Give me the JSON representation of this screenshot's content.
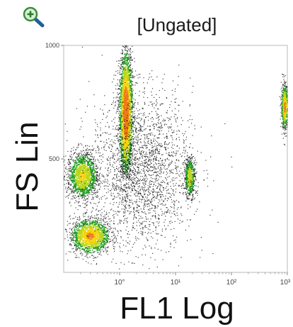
{
  "toolbar": {
    "zoom_icon": "magnifier-plus-icon",
    "zoom_color": "#2e7bc4"
  },
  "chart_data": {
    "type": "scatter",
    "title": "[Ungated]",
    "xlabel": "FL1 Log",
    "ylabel": "FS Lin",
    "x_scale": "log",
    "xlim": [
      0.1,
      1000
    ],
    "ylim": [
      0,
      1000
    ],
    "x_ticks": [
      {
        "value": 1,
        "label": "10°"
      },
      {
        "value": 10,
        "label": "10¹"
      },
      {
        "value": 100,
        "label": "10²"
      },
      {
        "value": 1000,
        "label": "10³"
      }
    ],
    "y_ticks": [
      {
        "value": 500,
        "label": "500"
      },
      {
        "value": 1000,
        "label": "1000"
      }
    ],
    "color_scale": [
      "#000000",
      "#1f9a1f",
      "#b6d61a",
      "#f5d30a",
      "#f07a17"
    ],
    "populations": [
      {
        "x_center": 1.3,
        "y_center": 700,
        "x_spread_decades": 0.06,
        "y_spread": 140,
        "density": 1.0,
        "count": 2600
      },
      {
        "x_center": 0.22,
        "y_center": 425,
        "x_spread_decades": 0.14,
        "y_spread": 55,
        "density": 0.55,
        "count": 1300
      },
      {
        "x_center": 0.3,
        "y_center": 160,
        "x_spread_decades": 0.18,
        "y_spread": 40,
        "density": 0.75,
        "count": 1400
      },
      {
        "x_center": 18,
        "y_center": 420,
        "x_spread_decades": 0.05,
        "y_spread": 45,
        "density": 0.5,
        "count": 500
      },
      {
        "x_center": 900,
        "y_center": 730,
        "x_spread_decades": 0.03,
        "y_spread": 50,
        "density": 0.8,
        "count": 600
      },
      {
        "x_center": 2.5,
        "y_center": 450,
        "x_spread_decades": 0.45,
        "y_spread": 170,
        "density": 0.1,
        "count": 2400
      }
    ],
    "grid": false,
    "legend": "none"
  }
}
